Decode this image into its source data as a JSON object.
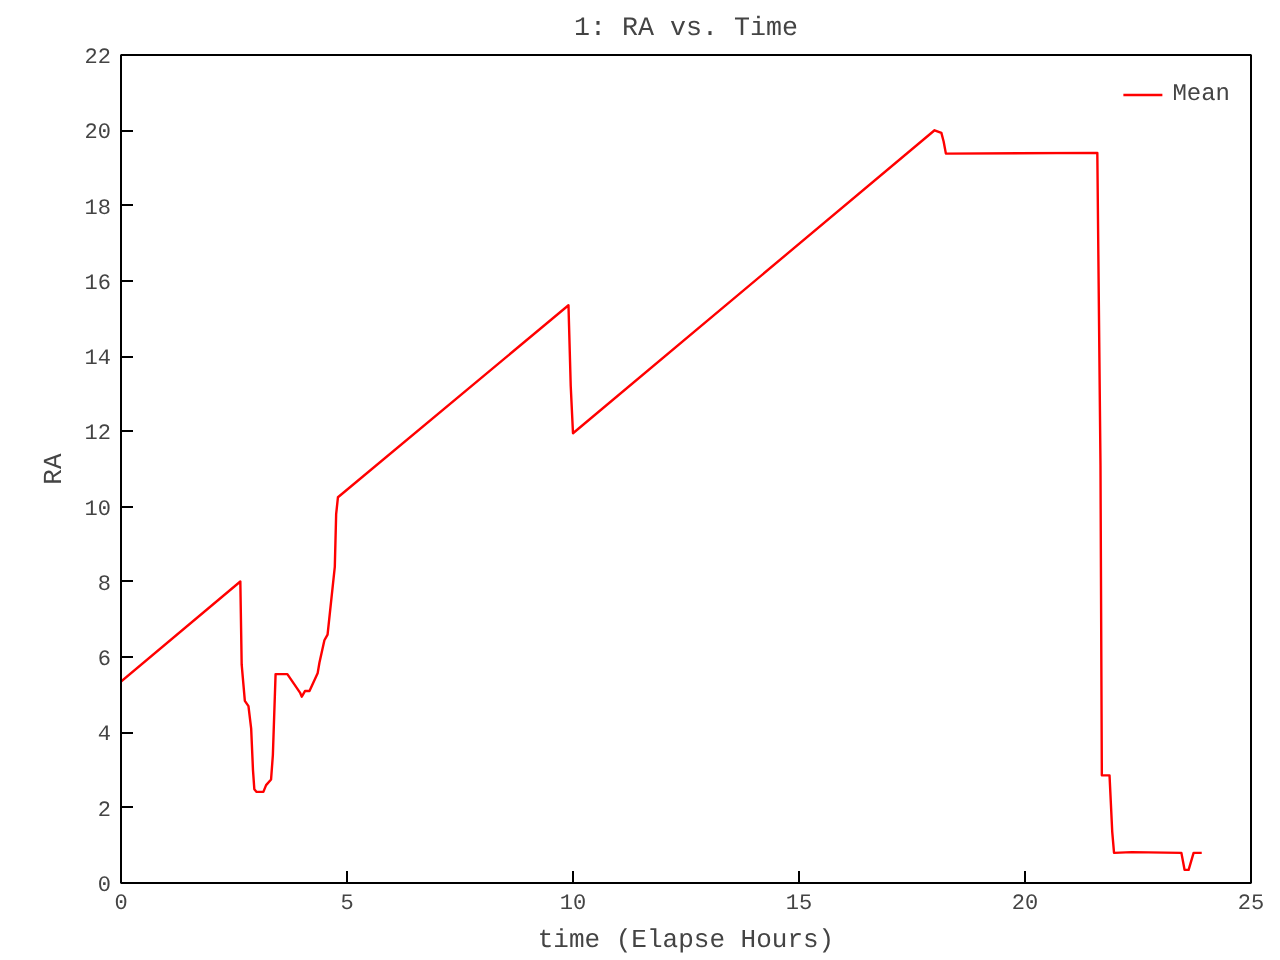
{
  "chart_data": {
    "type": "line",
    "title": "1: RA vs. Time",
    "xlabel": "time (Elapse Hours)",
    "ylabel": "RA",
    "x": [
      0,
      2.64,
      2.67,
      2.74,
      2.82,
      2.88,
      2.92,
      2.95,
      3.0,
      3.15,
      3.21,
      3.32,
      3.36,
      3.42,
      3.68,
      3.96,
      4.0,
      4.07,
      4.17,
      4.35,
      4.39,
      4.5,
      4.57,
      4.73,
      4.76,
      4.8,
      9.9,
      9.95,
      10.0,
      18.0,
      18.15,
      18.2,
      18.25,
      21.6,
      21.67,
      21.7,
      21.87,
      21.93,
      21.97,
      22.36,
      23.46,
      23.53,
      23.62,
      23.73,
      23.91
    ],
    "series": [
      {
        "name": "Mean",
        "color": "#ff0000",
        "values": [
          5.35,
          8.01,
          5.8,
          4.84,
          4.7,
          4.1,
          3.0,
          2.49,
          2.42,
          2.42,
          2.6,
          2.75,
          3.4,
          5.55,
          5.55,
          5.06,
          4.95,
          5.1,
          5.1,
          5.57,
          5.85,
          6.45,
          6.6,
          8.4,
          9.8,
          10.25,
          15.35,
          13.2,
          11.95,
          20.0,
          19.93,
          19.7,
          19.38,
          19.4,
          11.1,
          2.86,
          2.86,
          1.36,
          0.8,
          0.82,
          0.8,
          0.35,
          0.35,
          0.8,
          0.8
        ]
      }
    ],
    "xlim": [
      0,
      25
    ],
    "ylim": [
      0,
      22
    ],
    "xticks": [
      0,
      5,
      10,
      15,
      20,
      25
    ],
    "yticks": [
      0,
      2,
      4,
      6,
      8,
      10,
      12,
      14,
      16,
      18,
      20,
      22
    ],
    "grid": false,
    "legend": "top right",
    "marker": "none",
    "line_style": "solid"
  }
}
